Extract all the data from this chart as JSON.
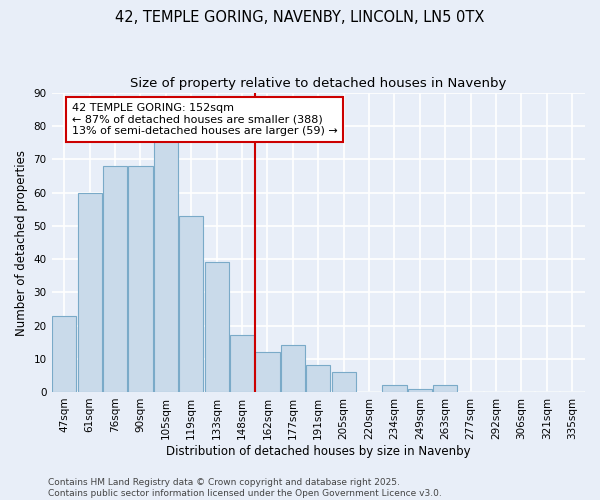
{
  "title": "42, TEMPLE GORING, NAVENBY, LINCOLN, LN5 0TX",
  "subtitle": "Size of property relative to detached houses in Navenby",
  "xlabel": "Distribution of detached houses by size in Navenby",
  "ylabel": "Number of detached properties",
  "categories": [
    "47sqm",
    "61sqm",
    "76sqm",
    "90sqm",
    "105sqm",
    "119sqm",
    "133sqm",
    "148sqm",
    "162sqm",
    "177sqm",
    "191sqm",
    "205sqm",
    "220sqm",
    "234sqm",
    "249sqm",
    "263sqm",
    "277sqm",
    "292sqm",
    "306sqm",
    "321sqm",
    "335sqm"
  ],
  "values": [
    23,
    60,
    68,
    68,
    76,
    53,
    39,
    17,
    12,
    14,
    8,
    6,
    0,
    2,
    1,
    2,
    0,
    0,
    0,
    0,
    0
  ],
  "bar_color": "#c9daea",
  "bar_edge_color": "#7aaac8",
  "marker_line_index": 7.5,
  "marker_label": "42 TEMPLE GORING: 152sqm",
  "annotation_line1": "← 87% of detached houses are smaller (388)",
  "annotation_line2": "13% of semi-detached houses are larger (59) →",
  "marker_line_color": "#cc0000",
  "annotation_box_facecolor": "#ffffff",
  "annotation_box_edgecolor": "#cc0000",
  "ylim": [
    0,
    90
  ],
  "yticks": [
    0,
    10,
    20,
    30,
    40,
    50,
    60,
    70,
    80,
    90
  ],
  "background_color": "#e8eef8",
  "grid_color": "#ffffff",
  "footer": "Contains HM Land Registry data © Crown copyright and database right 2025.\nContains public sector information licensed under the Open Government Licence v3.0.",
  "title_fontsize": 10.5,
  "subtitle_fontsize": 9.5,
  "axis_label_fontsize": 8.5,
  "tick_fontsize": 7.5,
  "annotation_fontsize": 8,
  "footer_fontsize": 6.5
}
